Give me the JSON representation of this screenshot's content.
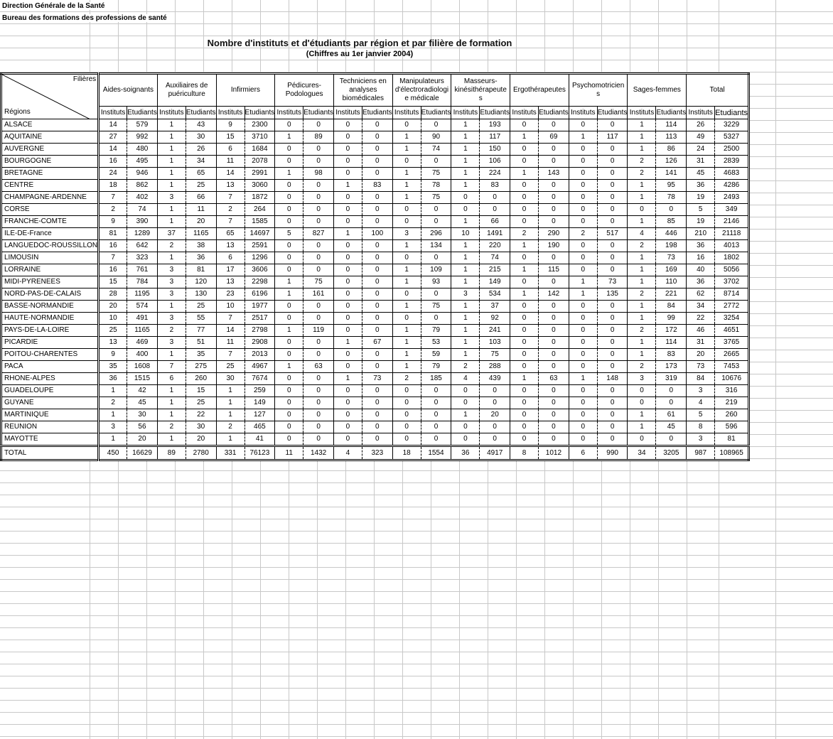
{
  "header": {
    "line1": "Direction Générale de la Santé",
    "line2": "Bureau des formations des professions de santé",
    "title": "Nombre d'instituts et d'étudiants par région et par filière de formation",
    "subtitle": "(Chiffres au 1er janvier 2004)"
  },
  "table": {
    "corner_top": "Filières",
    "corner_bottom": "Régions",
    "sub_labels": {
      "instituts": "Instituts",
      "etudiants": "Etudiants"
    },
    "columns": [
      "Aides-soignants",
      "Auxiliaires de puériculture",
      "Infirmiers",
      "Pédicures-Podologues",
      "Techniciens en analyses biomédicales",
      "Manipulateurs d'électroradiologie médicale",
      "Masseurs-kinésithérapeutes",
      "Ergothérapeutes",
      "Psychomotriciens",
      "Sages-femmes",
      "Total"
    ],
    "rows": [
      {
        "region": "ALSACE",
        "values": [
          14,
          579,
          1,
          43,
          9,
          2300,
          0,
          0,
          0,
          0,
          0,
          0,
          1,
          193,
          0,
          0,
          0,
          0,
          1,
          114,
          26,
          3229
        ]
      },
      {
        "region": "AQUITAINE",
        "values": [
          27,
          992,
          1,
          30,
          15,
          3710,
          1,
          89,
          0,
          0,
          1,
          90,
          1,
          117,
          1,
          69,
          1,
          117,
          1,
          113,
          49,
          5327
        ]
      },
      {
        "region": "AUVERGNE",
        "values": [
          14,
          480,
          1,
          26,
          6,
          1684,
          0,
          0,
          0,
          0,
          1,
          74,
          1,
          150,
          0,
          0,
          0,
          0,
          1,
          86,
          24,
          2500
        ]
      },
      {
        "region": "BOURGOGNE",
        "values": [
          16,
          495,
          1,
          34,
          11,
          2078,
          0,
          0,
          0,
          0,
          0,
          0,
          1,
          106,
          0,
          0,
          0,
          0,
          2,
          126,
          31,
          2839
        ]
      },
      {
        "region": "BRETAGNE",
        "values": [
          24,
          946,
          1,
          65,
          14,
          2991,
          1,
          98,
          0,
          0,
          1,
          75,
          1,
          224,
          1,
          143,
          0,
          0,
          2,
          141,
          45,
          4683
        ]
      },
      {
        "region": "CENTRE",
        "values": [
          18,
          862,
          1,
          25,
          13,
          3060,
          0,
          0,
          1,
          83,
          1,
          78,
          1,
          83,
          0,
          0,
          0,
          0,
          1,
          95,
          36,
          4286
        ]
      },
      {
        "region": "CHAMPAGNE-ARDENNE",
        "values": [
          7,
          402,
          3,
          66,
          7,
          1872,
          0,
          0,
          0,
          0,
          1,
          75,
          0,
          0,
          0,
          0,
          0,
          0,
          1,
          78,
          19,
          2493
        ]
      },
      {
        "region": "CORSE",
        "values": [
          2,
          74,
          1,
          11,
          2,
          264,
          0,
          0,
          0,
          0,
          0,
          0,
          0,
          0,
          0,
          0,
          0,
          0,
          0,
          0,
          5,
          349
        ]
      },
      {
        "region": "FRANCHE-COMTE",
        "values": [
          9,
          390,
          1,
          20,
          7,
          1585,
          0,
          0,
          0,
          0,
          0,
          0,
          1,
          66,
          0,
          0,
          0,
          0,
          1,
          85,
          19,
          2146
        ]
      },
      {
        "region": "ILE-DE-France",
        "values": [
          81,
          1289,
          37,
          1165,
          65,
          14697,
          5,
          827,
          1,
          100,
          3,
          296,
          10,
          1491,
          2,
          290,
          2,
          517,
          4,
          446,
          210,
          21118
        ]
      },
      {
        "region": "LANGUEDOC-ROUSSILLON",
        "values": [
          16,
          642,
          2,
          38,
          13,
          2591,
          0,
          0,
          0,
          0,
          1,
          134,
          1,
          220,
          1,
          190,
          0,
          0,
          2,
          198,
          36,
          4013
        ]
      },
      {
        "region": "LIMOUSIN",
        "values": [
          7,
          323,
          1,
          36,
          6,
          1296,
          0,
          0,
          0,
          0,
          0,
          0,
          1,
          74,
          0,
          0,
          0,
          0,
          1,
          73,
          16,
          1802
        ]
      },
      {
        "region": "LORRAINE",
        "values": [
          16,
          761,
          3,
          81,
          17,
          3606,
          0,
          0,
          0,
          0,
          1,
          109,
          1,
          215,
          1,
          115,
          0,
          0,
          1,
          169,
          40,
          5056
        ]
      },
      {
        "region": "MIDI-PYRENEES",
        "values": [
          15,
          784,
          3,
          120,
          13,
          2298,
          1,
          75,
          0,
          0,
          1,
          93,
          1,
          149,
          0,
          0,
          1,
          73,
          1,
          110,
          36,
          3702
        ]
      },
      {
        "region": "NORD-PAS-DE-CALAIS",
        "values": [
          28,
          1195,
          3,
          130,
          23,
          6196,
          1,
          161,
          0,
          0,
          0,
          0,
          3,
          534,
          1,
          142,
          1,
          135,
          2,
          221,
          62,
          8714
        ]
      },
      {
        "region": "BASSE-NORMANDIE",
        "values": [
          20,
          574,
          1,
          25,
          10,
          1977,
          0,
          0,
          0,
          0,
          1,
          75,
          1,
          37,
          0,
          0,
          0,
          0,
          1,
          84,
          34,
          2772
        ]
      },
      {
        "region": "HAUTE-NORMANDIE",
        "values": [
          10,
          491,
          3,
          55,
          7,
          2517,
          0,
          0,
          0,
          0,
          0,
          0,
          1,
          92,
          0,
          0,
          0,
          0,
          1,
          99,
          22,
          3254
        ]
      },
      {
        "region": "PAYS-DE-LA-LOIRE",
        "values": [
          25,
          1165,
          2,
          77,
          14,
          2798,
          1,
          119,
          0,
          0,
          1,
          79,
          1,
          241,
          0,
          0,
          0,
          0,
          2,
          172,
          46,
          4651
        ]
      },
      {
        "region": "PICARDIE",
        "values": [
          13,
          469,
          3,
          51,
          11,
          2908,
          0,
          0,
          1,
          67,
          1,
          53,
          1,
          103,
          0,
          0,
          0,
          0,
          1,
          114,
          31,
          3765
        ]
      },
      {
        "region": "POITOU-CHARENTES",
        "values": [
          9,
          400,
          1,
          35,
          7,
          2013,
          0,
          0,
          0,
          0,
          1,
          59,
          1,
          75,
          0,
          0,
          0,
          0,
          1,
          83,
          20,
          2665
        ]
      },
      {
        "region": "PACA",
        "values": [
          35,
          1608,
          7,
          275,
          25,
          4967,
          1,
          63,
          0,
          0,
          1,
          79,
          2,
          288,
          0,
          0,
          0,
          0,
          2,
          173,
          73,
          7453
        ]
      },
      {
        "region": "RHONE-ALPES",
        "values": [
          36,
          1515,
          6,
          260,
          30,
          7674,
          0,
          0,
          1,
          73,
          2,
          185,
          4,
          439,
          1,
          63,
          1,
          148,
          3,
          319,
          84,
          10676
        ]
      },
      {
        "region": "GUADELOUPE",
        "values": [
          1,
          42,
          1,
          15,
          1,
          259,
          0,
          0,
          0,
          0,
          0,
          0,
          0,
          0,
          0,
          0,
          0,
          0,
          0,
          0,
          3,
          316
        ]
      },
      {
        "region": "GUYANE",
        "values": [
          2,
          45,
          1,
          25,
          1,
          149,
          0,
          0,
          0,
          0,
          0,
          0,
          0,
          0,
          0,
          0,
          0,
          0,
          0,
          0,
          4,
          219
        ]
      },
      {
        "region": "MARTINIQUE",
        "values": [
          1,
          30,
          1,
          22,
          1,
          127,
          0,
          0,
          0,
          0,
          0,
          0,
          1,
          20,
          0,
          0,
          0,
          0,
          1,
          61,
          5,
          260
        ]
      },
      {
        "region": "REUNION",
        "values": [
          3,
          56,
          2,
          30,
          2,
          465,
          0,
          0,
          0,
          0,
          0,
          0,
          0,
          0,
          0,
          0,
          0,
          0,
          1,
          45,
          8,
          596
        ]
      },
      {
        "region": "MAYOTTE",
        "values": [
          1,
          20,
          1,
          20,
          1,
          41,
          0,
          0,
          0,
          0,
          0,
          0,
          0,
          0,
          0,
          0,
          0,
          0,
          0,
          0,
          3,
          81
        ]
      }
    ],
    "total": {
      "region": "TOTAL",
      "values": [
        450,
        16629,
        89,
        2780,
        331,
        76123,
        11,
        1432,
        4,
        323,
        18,
        1554,
        36,
        4917,
        8,
        1012,
        6,
        990,
        34,
        3205,
        987,
        108965
      ]
    }
  }
}
